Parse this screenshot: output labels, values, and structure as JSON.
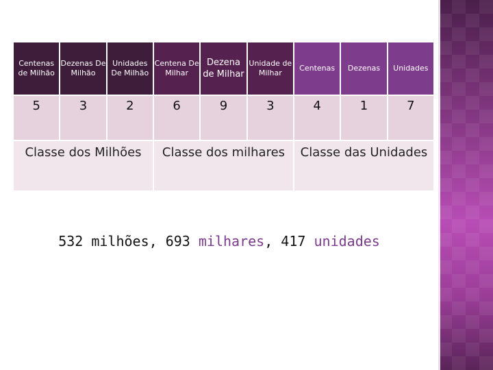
{
  "headers": [
    "Centenas de Milhão",
    "Dezenas De Milhão",
    "Unidades De Milhão",
    "Centena De Milhar",
    "Dezena de Milhar",
    "Unidade de Milhar",
    "Centenas",
    "Dezenas",
    "Unidades"
  ],
  "digits": [
    "5",
    "3",
    "2",
    "6",
    "9",
    "3",
    "4",
    "1",
    "7"
  ],
  "classes": [
    "Classe dos Milhões",
    "Classe dos milhares",
    "Classe das Unidades"
  ],
  "summary": {
    "millions": "532 milhões, 693",
    "thousands_word": "milhares",
    "sep": ", 417",
    "units_word": "unidades"
  },
  "colors": {
    "header_millions": "#3d1d3a",
    "header_thousands": "#55214f",
    "header_units": "#7e3d8c",
    "value_cell": "#e6d2dc",
    "class_cell": "#f1e6ec",
    "highlight_text": "#7a3a8c",
    "side_panel": "#9b3e98"
  }
}
